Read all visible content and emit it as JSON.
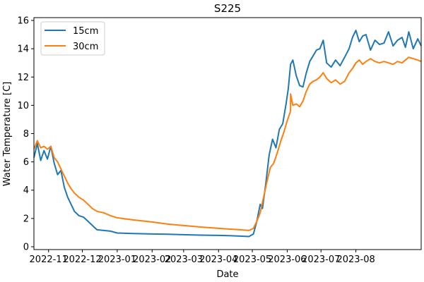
{
  "chart_data": {
    "type": "line",
    "title": "S225",
    "xlabel": "Date",
    "ylabel": "Water Temperature [C]",
    "xlim": [
      "2022-10-19",
      "2023-09-28"
    ],
    "ylim": [
      -0.2,
      16.2
    ],
    "x_ticks": [
      "2022-11",
      "2022-12",
      "2023-01",
      "2023-02",
      "2023-03",
      "2023-04",
      "2023-05",
      "2023-06",
      "2023-07",
      "2023-08"
    ],
    "y_ticks": [
      0,
      2,
      4,
      6,
      8,
      10,
      12,
      14,
      16
    ],
    "legend": "upper left",
    "grid": false,
    "series": [
      {
        "name": "15cm",
        "color": "#1f77b4",
        "points": [
          [
            "2022-10-19",
            6.3
          ],
          [
            "2022-10-22",
            7.3
          ],
          [
            "2022-10-25",
            6.1
          ],
          [
            "2022-10-28",
            6.8
          ],
          [
            "2022-10-31",
            6.2
          ],
          [
            "2022-11-03",
            7.1
          ],
          [
            "2022-11-06",
            5.9
          ],
          [
            "2022-11-09",
            5.1
          ],
          [
            "2022-11-12",
            5.4
          ],
          [
            "2022-11-15",
            4.2
          ],
          [
            "2022-11-18",
            3.5
          ],
          [
            "2022-11-21",
            3.0
          ],
          [
            "2022-11-24",
            2.5
          ],
          [
            "2022-11-28",
            2.2
          ],
          [
            "2022-12-02",
            2.1
          ],
          [
            "2022-12-06",
            1.8
          ],
          [
            "2022-12-10",
            1.5
          ],
          [
            "2022-12-14",
            1.2
          ],
          [
            "2022-12-20",
            1.15
          ],
          [
            "2022-12-26",
            1.1
          ],
          [
            "2023-01-01",
            0.97
          ],
          [
            "2023-01-15",
            0.93
          ],
          [
            "2023-02-01",
            0.9
          ],
          [
            "2023-02-15",
            0.88
          ],
          [
            "2023-03-01",
            0.85
          ],
          [
            "2023-03-15",
            0.82
          ],
          [
            "2023-04-01",
            0.8
          ],
          [
            "2023-04-10",
            0.78
          ],
          [
            "2023-04-20",
            0.75
          ],
          [
            "2023-04-28",
            0.72
          ],
          [
            "2023-05-02",
            0.9
          ],
          [
            "2023-05-05",
            1.8
          ],
          [
            "2023-05-08",
            3.0
          ],
          [
            "2023-05-10",
            2.7
          ],
          [
            "2023-05-13",
            4.5
          ],
          [
            "2023-05-16",
            6.5
          ],
          [
            "2023-05-19",
            7.6
          ],
          [
            "2023-05-22",
            7.0
          ],
          [
            "2023-05-25",
            8.3
          ],
          [
            "2023-05-28",
            8.7
          ],
          [
            "2023-05-31",
            10.1
          ],
          [
            "2023-06-02",
            11.2
          ],
          [
            "2023-06-04",
            12.9
          ],
          [
            "2023-06-06",
            13.2
          ],
          [
            "2023-06-09",
            12.1
          ],
          [
            "2023-06-12",
            11.4
          ],
          [
            "2023-06-15",
            11.3
          ],
          [
            "2023-06-18",
            12.3
          ],
          [
            "2023-06-21",
            13.1
          ],
          [
            "2023-06-24",
            13.5
          ],
          [
            "2023-06-27",
            13.9
          ],
          [
            "2023-06-30",
            14.0
          ],
          [
            "2023-07-03",
            14.6
          ],
          [
            "2023-07-06",
            13.0
          ],
          [
            "2023-07-10",
            12.7
          ],
          [
            "2023-07-14",
            13.2
          ],
          [
            "2023-07-18",
            12.8
          ],
          [
            "2023-07-22",
            13.4
          ],
          [
            "2023-07-26",
            14.0
          ],
          [
            "2023-07-29",
            14.8
          ],
          [
            "2023-08-01",
            15.3
          ],
          [
            "2023-08-04",
            14.5
          ],
          [
            "2023-08-07",
            14.9
          ],
          [
            "2023-08-10",
            15.0
          ],
          [
            "2023-08-14",
            13.9
          ],
          [
            "2023-08-18",
            14.6
          ],
          [
            "2023-08-22",
            14.3
          ],
          [
            "2023-08-26",
            14.4
          ],
          [
            "2023-08-30",
            15.2
          ],
          [
            "2023-09-03",
            14.2
          ],
          [
            "2023-09-07",
            14.6
          ],
          [
            "2023-09-11",
            14.8
          ],
          [
            "2023-09-14",
            14.1
          ],
          [
            "2023-09-17",
            15.2
          ],
          [
            "2023-09-21",
            14.0
          ],
          [
            "2023-09-25",
            14.7
          ],
          [
            "2023-09-28",
            14.2
          ]
        ]
      },
      {
        "name": "30cm",
        "color": "#ff7f0e",
        "points": [
          [
            "2022-10-19",
            6.9
          ],
          [
            "2022-10-22",
            7.5
          ],
          [
            "2022-10-25",
            7.0
          ],
          [
            "2022-10-28",
            7.1
          ],
          [
            "2022-10-31",
            6.9
          ],
          [
            "2022-11-03",
            7.1
          ],
          [
            "2022-11-06",
            6.3
          ],
          [
            "2022-11-09",
            6.0
          ],
          [
            "2022-11-12",
            5.5
          ],
          [
            "2022-11-15",
            5.0
          ],
          [
            "2022-11-18",
            4.5
          ],
          [
            "2022-11-21",
            4.1
          ],
          [
            "2022-11-24",
            3.8
          ],
          [
            "2022-11-28",
            3.5
          ],
          [
            "2022-12-02",
            3.3
          ],
          [
            "2022-12-06",
            3.0
          ],
          [
            "2022-12-10",
            2.7
          ],
          [
            "2022-12-14",
            2.5
          ],
          [
            "2022-12-20",
            2.4
          ],
          [
            "2022-12-26",
            2.2
          ],
          [
            "2023-01-01",
            2.05
          ],
          [
            "2023-01-15",
            1.9
          ],
          [
            "2023-02-01",
            1.75
          ],
          [
            "2023-02-15",
            1.6
          ],
          [
            "2023-03-01",
            1.5
          ],
          [
            "2023-03-15",
            1.4
          ],
          [
            "2023-04-01",
            1.3
          ],
          [
            "2023-04-10",
            1.25
          ],
          [
            "2023-04-20",
            1.2
          ],
          [
            "2023-04-28",
            1.15
          ],
          [
            "2023-05-02",
            1.3
          ],
          [
            "2023-05-05",
            1.8
          ],
          [
            "2023-05-08",
            2.4
          ],
          [
            "2023-05-11",
            3.5
          ],
          [
            "2023-05-14",
            4.6
          ],
          [
            "2023-05-17",
            5.6
          ],
          [
            "2023-05-20",
            5.9
          ],
          [
            "2023-05-23",
            6.6
          ],
          [
            "2023-05-26",
            7.4
          ],
          [
            "2023-05-29",
            8.1
          ],
          [
            "2023-06-01",
            8.9
          ],
          [
            "2023-06-04",
            9.6
          ],
          [
            "2023-06-04",
            10.8
          ],
          [
            "2023-06-06",
            10.0
          ],
          [
            "2023-06-09",
            10.1
          ],
          [
            "2023-06-12",
            9.9
          ],
          [
            "2023-06-15",
            10.3
          ],
          [
            "2023-06-18",
            11.0
          ],
          [
            "2023-06-21",
            11.5
          ],
          [
            "2023-06-24",
            11.7
          ],
          [
            "2023-06-27",
            11.8
          ],
          [
            "2023-06-30",
            12.0
          ],
          [
            "2023-07-03",
            12.3
          ],
          [
            "2023-07-06",
            11.9
          ],
          [
            "2023-07-10",
            11.6
          ],
          [
            "2023-07-14",
            11.8
          ],
          [
            "2023-07-18",
            11.5
          ],
          [
            "2023-07-22",
            11.7
          ],
          [
            "2023-07-26",
            12.3
          ],
          [
            "2023-07-29",
            12.6
          ],
          [
            "2023-08-01",
            13.0
          ],
          [
            "2023-08-04",
            13.2
          ],
          [
            "2023-08-07",
            12.9
          ],
          [
            "2023-08-10",
            13.1
          ],
          [
            "2023-08-14",
            13.3
          ],
          [
            "2023-08-18",
            13.1
          ],
          [
            "2023-08-22",
            13.0
          ],
          [
            "2023-08-26",
            13.1
          ],
          [
            "2023-08-30",
            13.0
          ],
          [
            "2023-09-03",
            12.9
          ],
          [
            "2023-09-07",
            13.1
          ],
          [
            "2023-09-11",
            13.0
          ],
          [
            "2023-09-14",
            13.2
          ],
          [
            "2023-09-17",
            13.4
          ],
          [
            "2023-09-21",
            13.3
          ],
          [
            "2023-09-25",
            13.2
          ],
          [
            "2023-09-28",
            13.1
          ]
        ]
      }
    ]
  }
}
